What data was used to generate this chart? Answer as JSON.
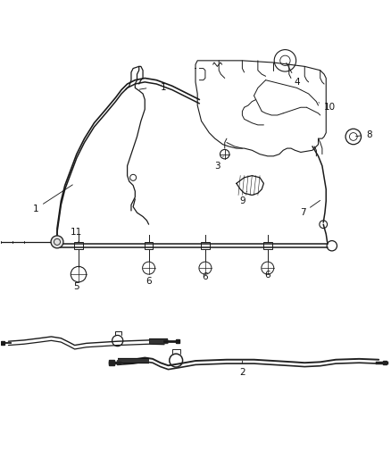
{
  "bg_color": "#ffffff",
  "line_color": "#1a1a1a",
  "label_color": "#111111",
  "figsize": [
    4.38,
    5.33
  ],
  "dpi": 100,
  "lw_main": 1.1,
  "lw_thin": 0.7,
  "lw_thick": 2.0
}
